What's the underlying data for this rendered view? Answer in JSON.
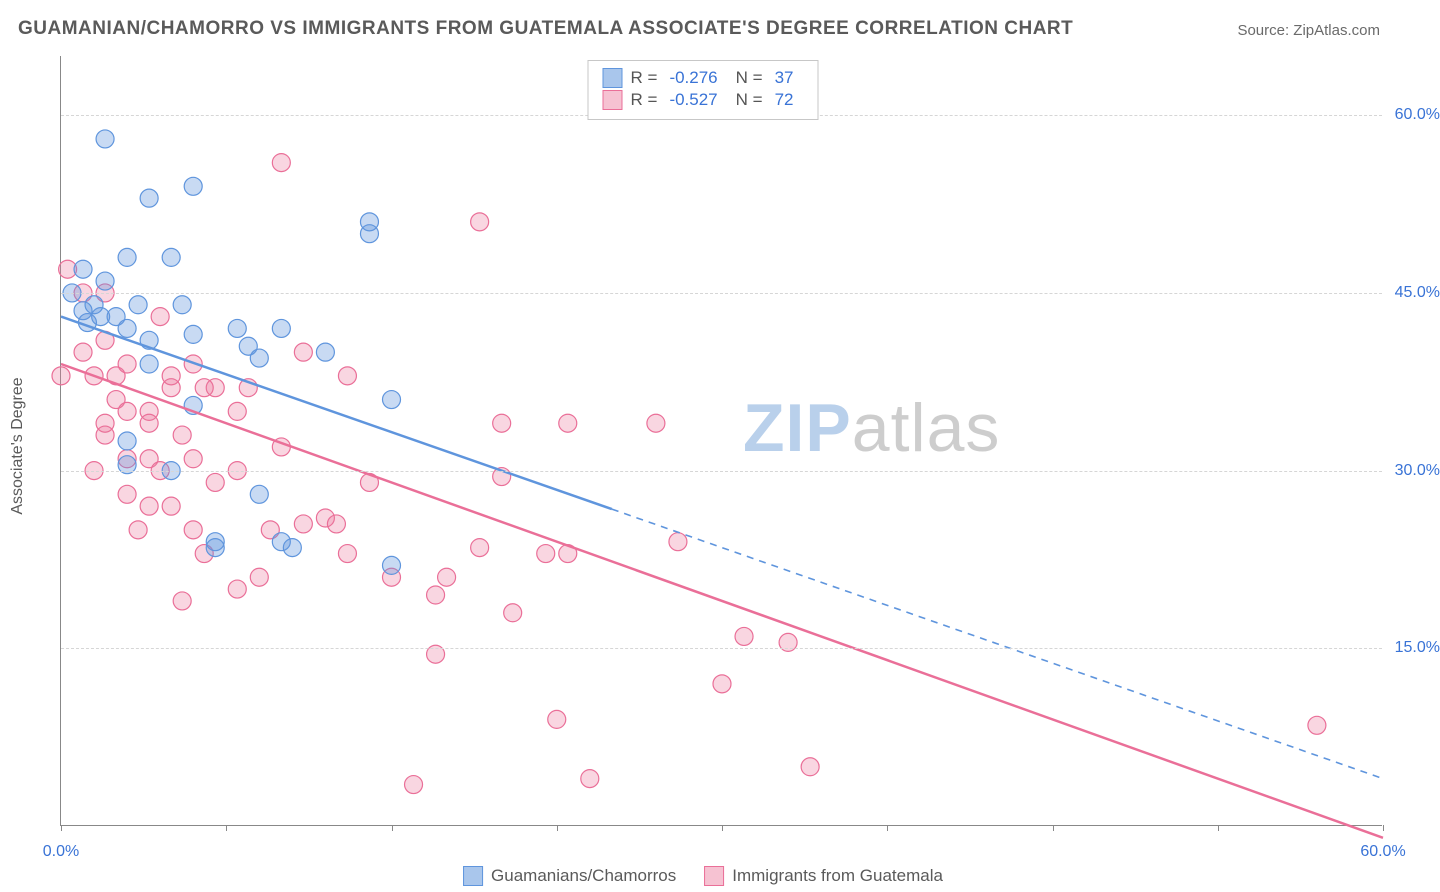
{
  "title": "GUAMANIAN/CHAMORRO VS IMMIGRANTS FROM GUATEMALA ASSOCIATE'S DEGREE CORRELATION CHART",
  "source": "Source: ZipAtlas.com",
  "y_axis_label": "Associate's Degree",
  "watermark": {
    "part1": "ZIP",
    "part2": "atlas"
  },
  "chart": {
    "type": "scatter",
    "background_color": "#ffffff",
    "grid_color": "#d6d6d6",
    "axis_color": "#888888",
    "text_color": "#5a5a5a",
    "value_color": "#3973d6",
    "xlim": [
      0,
      60
    ],
    "ylim": [
      0,
      65
    ],
    "y_ticks": [
      15,
      30,
      45,
      60
    ],
    "y_tick_labels": [
      "15.0%",
      "30.0%",
      "45.0%",
      "60.0%"
    ],
    "x_ticks": [
      0,
      7.5,
      15,
      22.5,
      30,
      37.5,
      45,
      52.5,
      60
    ],
    "x_tick_labels_shown": {
      "0": "0.0%",
      "60": "60.0%"
    },
    "marker_radius": 9,
    "marker_opacity": 0.5,
    "line_width": 2.5
  },
  "series": [
    {
      "name": "Guamanians/Chamorros",
      "color_fill": "rgba(96,150,222,0.35)",
      "color_stroke": "#5f95dd",
      "swatch_fill": "#a9c6ec",
      "swatch_border": "#5f95dd",
      "R": "-0.276",
      "N": "37",
      "trend": {
        "x1": 0,
        "y1": 43,
        "x2": 60,
        "y2": 4,
        "solid_until_x": 25
      },
      "points": [
        [
          0.5,
          45
        ],
        [
          1,
          47
        ],
        [
          1,
          43.5
        ],
        [
          1.2,
          42.5
        ],
        [
          1.5,
          44
        ],
        [
          1.8,
          43
        ],
        [
          2,
          46
        ],
        [
          2,
          58
        ],
        [
          3,
          42
        ],
        [
          3,
          48
        ],
        [
          3.5,
          44
        ],
        [
          3,
          32.5
        ],
        [
          3,
          30.5
        ],
        [
          4,
          53
        ],
        [
          4,
          41
        ],
        [
          4,
          39
        ],
        [
          5,
          48
        ],
        [
          5,
          30
        ],
        [
          5.5,
          44
        ],
        [
          6,
          54
        ],
        [
          6,
          41.5
        ],
        [
          6,
          35.5
        ],
        [
          7,
          24
        ],
        [
          7,
          23.5
        ],
        [
          8,
          42
        ],
        [
          9,
          39.5
        ],
        [
          9,
          28
        ],
        [
          10,
          42
        ],
        [
          10,
          24
        ],
        [
          10.5,
          23.5
        ],
        [
          12,
          40
        ],
        [
          14,
          51
        ],
        [
          14,
          50
        ],
        [
          15,
          36
        ],
        [
          15,
          22
        ],
        [
          8.5,
          40.5
        ],
        [
          2.5,
          43
        ]
      ]
    },
    {
      "name": "Immigrants from Guatemala",
      "color_fill": "rgba(236,120,155,0.30)",
      "color_stroke": "#ea6f98",
      "swatch_fill": "#f6c2d2",
      "swatch_border": "#ea6f98",
      "R": "-0.527",
      "N": "72",
      "trend": {
        "x1": 0,
        "y1": 39,
        "x2": 60,
        "y2": -1,
        "solid_until_x": 60
      },
      "points": [
        [
          0.3,
          47
        ],
        [
          0,
          38
        ],
        [
          1,
          45
        ],
        [
          1,
          40
        ],
        [
          1.5,
          38
        ],
        [
          2,
          45
        ],
        [
          2,
          41
        ],
        [
          2.5,
          38
        ],
        [
          2,
          34
        ],
        [
          2,
          33
        ],
        [
          2.5,
          36
        ],
        [
          3,
          35
        ],
        [
          3,
          39
        ],
        [
          3,
          31
        ],
        [
          3,
          28
        ],
        [
          4,
          35
        ],
        [
          4,
          34
        ],
        [
          4,
          31
        ],
        [
          4,
          27
        ],
        [
          4.5,
          30
        ],
        [
          5,
          27
        ],
        [
          5,
          38
        ],
        [
          5,
          37
        ],
        [
          5.5,
          33
        ],
        [
          6,
          39
        ],
        [
          6,
          31
        ],
        [
          6,
          25
        ],
        [
          6.5,
          23
        ],
        [
          7,
          37
        ],
        [
          7,
          29
        ],
        [
          8,
          20
        ],
        [
          8,
          35
        ],
        [
          8.5,
          37
        ],
        [
          9,
          21
        ],
        [
          9.5,
          25
        ],
        [
          10,
          56
        ],
        [
          11,
          25.5
        ],
        [
          12,
          26
        ],
        [
          12.5,
          25.5
        ],
        [
          13,
          38
        ],
        [
          14,
          29
        ],
        [
          15,
          21
        ],
        [
          16,
          3.5
        ],
        [
          17,
          14.5
        ],
        [
          17,
          19.5
        ],
        [
          17.5,
          21
        ],
        [
          19,
          23.5
        ],
        [
          19,
          51
        ],
        [
          20,
          34
        ],
        [
          20,
          29.5
        ],
        [
          20.5,
          18
        ],
        [
          22,
          23
        ],
        [
          22.5,
          9
        ],
        [
          23,
          23
        ],
        [
          23,
          34
        ],
        [
          24,
          4
        ],
        [
          27,
          34
        ],
        [
          28,
          24
        ],
        [
          30,
          12
        ],
        [
          31,
          16
        ],
        [
          33,
          15.5
        ],
        [
          34,
          5
        ],
        [
          57,
          8.5
        ],
        [
          10,
          32
        ],
        [
          11,
          40
        ],
        [
          13,
          23
        ],
        [
          8,
          30
        ],
        [
          6.5,
          37
        ],
        [
          5.5,
          19
        ],
        [
          4.5,
          43
        ],
        [
          3.5,
          25
        ],
        [
          1.5,
          30
        ]
      ]
    }
  ],
  "legend_top": {
    "R_label": "R =",
    "N_label": "N ="
  },
  "legend_bottom": [
    {
      "label": "Guamanians/Chamorros",
      "swatch_fill": "#a9c6ec",
      "swatch_border": "#5f95dd"
    },
    {
      "label": "Immigrants from Guatemala",
      "swatch_fill": "#f6c2d2",
      "swatch_border": "#ea6f98"
    }
  ]
}
